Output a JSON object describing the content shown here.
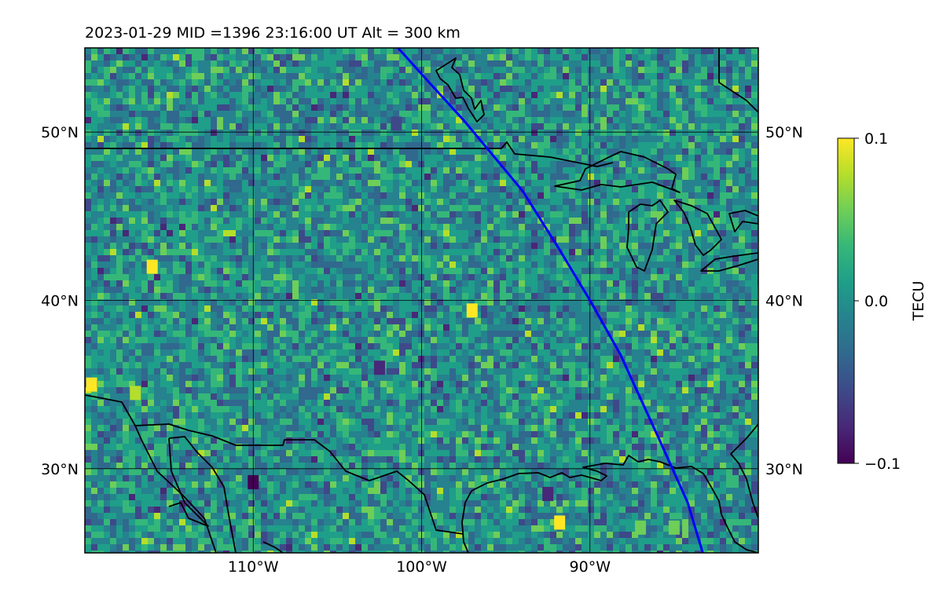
{
  "title": "2023-01-29  MID =1396    23:16:00  UT  Alt = 300 km",
  "map": {
    "lat_range": [
      25,
      55
    ],
    "lon_range": [
      -120,
      -80
    ],
    "lat_ticks": [
      {
        "value": 50,
        "label": "50°N"
      },
      {
        "value": 40,
        "label": "40°N"
      },
      {
        "value": 30,
        "label": "30°N"
      }
    ],
    "lon_ticks": [
      {
        "value": -110,
        "label": "110°W"
      },
      {
        "value": -100,
        "label": "100°W"
      },
      {
        "value": -90,
        "label": "90°W"
      }
    ],
    "gridlines": true,
    "background_mean_tecu": 0.0,
    "field_colormap": "viridis",
    "coastline_color": "#000000",
    "track_color": "#0000ff",
    "track_path": [
      {
        "lon": -101.4,
        "lat": 55.0
      },
      {
        "lon": -99.6,
        "lat": 53.0
      },
      {
        "lon": -97.5,
        "lat": 50.7
      },
      {
        "lon": -94.0,
        "lat": 46.5
      },
      {
        "lon": -91.8,
        "lat": 43.0
      },
      {
        "lon": -90.0,
        "lat": 40.0
      },
      {
        "lon": -88.2,
        "lat": 36.8
      },
      {
        "lon": -86.0,
        "lat": 32.0
      },
      {
        "lon": -84.2,
        "lat": 28.0
      },
      {
        "lon": -83.3,
        "lat": 25.0
      }
    ],
    "hotspots": [
      {
        "lon": -91.8,
        "lat": 26.8,
        "tecu": 0.1
      },
      {
        "lon": -119.6,
        "lat": 35.0,
        "tecu": 0.09
      },
      {
        "lon": -116.0,
        "lat": 42.0,
        "tecu": 0.08
      },
      {
        "lon": -117.0,
        "lat": 34.5,
        "tecu": 0.07
      },
      {
        "lon": -97.0,
        "lat": 39.4,
        "tecu": 0.09
      },
      {
        "lon": -110.0,
        "lat": 29.2,
        "tecu": -0.09
      },
      {
        "lon": -92.5,
        "lat": 28.5,
        "tecu": -0.07
      },
      {
        "lon": -102.5,
        "lat": 36.0,
        "tecu": -0.08
      },
      {
        "lon": -101.5,
        "lat": 50.5,
        "tecu": -0.06
      },
      {
        "lon": -87.0,
        "lat": 26.5,
        "tecu": 0.05
      },
      {
        "lon": -85.0,
        "lat": 26.5,
        "tecu": 0.05
      }
    ]
  },
  "colorbar": {
    "label": "TECU",
    "min": -0.1,
    "max": 0.1,
    "ticks": [
      {
        "value": 0.1,
        "label": "0.1"
      },
      {
        "value": 0.0,
        "label": "0.0"
      },
      {
        "value": -0.1,
        "label": "−0.1"
      }
    ],
    "colors": [
      "#440154",
      "#482878",
      "#3e4989",
      "#31688e",
      "#26828e",
      "#1f9e89",
      "#35b779",
      "#6ece58",
      "#b5de2b",
      "#fde725"
    ]
  }
}
